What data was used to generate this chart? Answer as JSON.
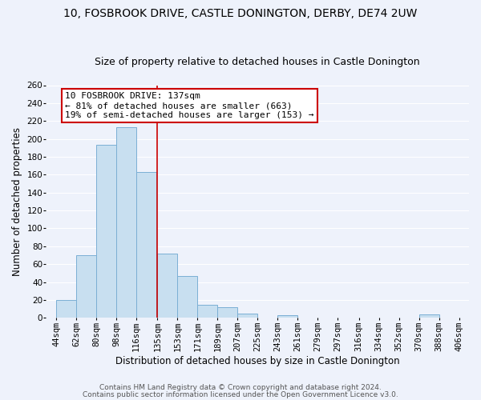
{
  "title": "10, FOSBROOK DRIVE, CASTLE DONINGTON, DERBY, DE74 2UW",
  "subtitle": "Size of property relative to detached houses in Castle Donington",
  "xlabel": "Distribution of detached houses by size in Castle Donington",
  "ylabel": "Number of detached properties",
  "bar_color": "#c8dff0",
  "bar_edge_color": "#7bafd4",
  "bar_left_edges": [
    44,
    62,
    80,
    98,
    116,
    135,
    153,
    171,
    189,
    207,
    225,
    243,
    261,
    279,
    297,
    316,
    334,
    352,
    370,
    388
  ],
  "bar_widths": [
    18,
    18,
    18,
    18,
    18,
    18,
    18,
    18,
    18,
    18,
    18,
    18,
    18,
    18,
    18,
    18,
    18,
    18,
    18,
    18
  ],
  "bar_heights": [
    20,
    70,
    193,
    213,
    163,
    72,
    47,
    15,
    12,
    5,
    0,
    3,
    0,
    0,
    0,
    0,
    0,
    0,
    4,
    0
  ],
  "xticklabels": [
    "44sqm",
    "62sqm",
    "80sqm",
    "98sqm",
    "116sqm",
    "135sqm",
    "153sqm",
    "171sqm",
    "189sqm",
    "207sqm",
    "225sqm",
    "243sqm",
    "261sqm",
    "279sqm",
    "297sqm",
    "316sqm",
    "334sqm",
    "352sqm",
    "370sqm",
    "388sqm",
    "406sqm"
  ],
  "xtick_positions": [
    44,
    62,
    80,
    98,
    116,
    135,
    153,
    171,
    189,
    207,
    225,
    243,
    261,
    279,
    297,
    316,
    334,
    352,
    370,
    388,
    406
  ],
  "ylim": [
    0,
    260
  ],
  "xlim": [
    35,
    415
  ],
  "yticks": [
    0,
    20,
    40,
    60,
    80,
    100,
    120,
    140,
    160,
    180,
    200,
    220,
    240,
    260
  ],
  "vline_x": 135,
  "vline_color": "#cc0000",
  "annotation_title": "10 FOSBROOK DRIVE: 137sqm",
  "annotation_line1": "← 81% of detached houses are smaller (663)",
  "annotation_line2": "19% of semi-detached houses are larger (153) →",
  "annotation_box_color": "#ffffff",
  "annotation_box_edge": "#cc0000",
  "footer1": "Contains HM Land Registry data © Crown copyright and database right 2024.",
  "footer2": "Contains public sector information licensed under the Open Government Licence v3.0.",
  "background_color": "#eef2fb",
  "grid_color": "#ffffff",
  "title_fontsize": 10,
  "subtitle_fontsize": 9,
  "axis_label_fontsize": 8.5,
  "tick_fontsize": 7.5,
  "annotation_fontsize": 8,
  "footer_fontsize": 6.5
}
